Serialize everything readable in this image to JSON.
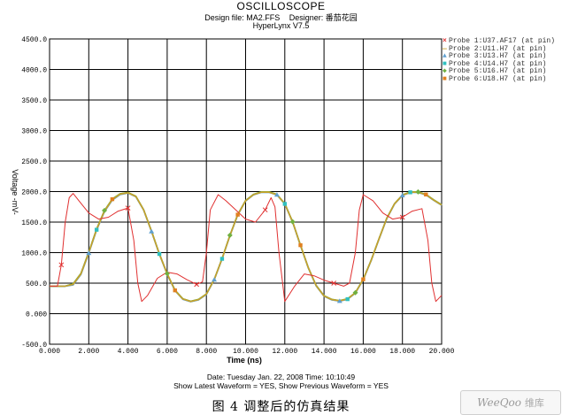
{
  "header": {
    "title": "OSCILLOSCOPE",
    "design_file": "Design file: MA2.FFS",
    "designer": "Designer: 番茄花园",
    "tool": "HyperLynx V7.5"
  },
  "footer": {
    "date_line": "Date: Tuesday Jan. 22, 2008   Time: 10:10:49",
    "show_line": "Show Latest Waveform = YES,   Show Previous Waveform = YES"
  },
  "caption": "图 4   调整后的仿真结果",
  "watermark": {
    "latin": "WeeQoo",
    "cjk": "维库"
  },
  "chart_data": {
    "type": "line",
    "xlabel": "Time (ns)",
    "ylabel": "Voltage -mV-",
    "xlim": [
      0,
      20
    ],
    "ylim": [
      -500,
      4500
    ],
    "x_ticks": [
      "0.000",
      "2.000",
      "4.000",
      "6.000",
      "8.000",
      "10.000",
      "12.000",
      "14.000",
      "16.000",
      "18.000",
      "20.000"
    ],
    "y_ticks": [
      "-500.0",
      "0.000",
      "500.0",
      "1000.0",
      "1500.0",
      "2000.0",
      "2500.0",
      "3000.0",
      "3500.0",
      "4000.0",
      "4500.0"
    ],
    "grid": true,
    "legend_position": "right",
    "series": [
      {
        "name": "Probe 1:U37.AF17 (at pin)",
        "color": "#e03030",
        "marker": "x",
        "x": [
          0,
          0.4,
          0.6,
          0.8,
          1.0,
          1.2,
          1.5,
          2.0,
          2.5,
          3.0,
          3.5,
          4.0,
          4.3,
          4.5,
          4.7,
          5.0,
          5.5,
          6.0,
          6.5,
          7.0,
          7.5,
          7.8,
          8.0,
          8.2,
          8.6,
          9.0,
          9.5,
          10.0,
          10.5,
          11.0,
          11.3,
          11.5,
          11.7,
          12.0,
          12.5,
          13.0,
          13.5,
          14.0,
          14.5,
          15.0,
          15.3,
          15.6,
          15.8,
          16.0,
          16.5,
          17.0,
          17.5,
          18.0,
          18.5,
          19.0,
          19.3,
          19.5,
          19.7,
          20.0
        ],
        "y": [
          450,
          450,
          800,
          1500,
          1900,
          1970,
          1850,
          1650,
          1550,
          1580,
          1680,
          1730,
          1200,
          500,
          200,
          300,
          580,
          680,
          650,
          560,
          480,
          520,
          1000,
          1700,
          1950,
          1850,
          1700,
          1550,
          1500,
          1700,
          1900,
          1750,
          1000,
          200,
          450,
          650,
          620,
          550,
          500,
          450,
          500,
          1000,
          1700,
          1950,
          1850,
          1650,
          1550,
          1580,
          1680,
          1720,
          1200,
          500,
          200,
          300
        ]
      },
      {
        "name": "Probe 2:U11.H7 (at pin)",
        "color": "#c8a028",
        "marker": "",
        "x": [
          0,
          0.8,
          1.2,
          1.6,
          2.0,
          2.4,
          2.8,
          3.2,
          3.6,
          4.0,
          4.4,
          4.8,
          5.2,
          5.6,
          6.0,
          6.4,
          6.8,
          7.2,
          7.6,
          8.0,
          8.4,
          8.8,
          9.2,
          9.6,
          10.0,
          10.4,
          10.8,
          11.2,
          11.6,
          12.0,
          12.4,
          12.8,
          13.2,
          13.6,
          14.0,
          14.4,
          14.8,
          15.2,
          15.6,
          16.0,
          16.4,
          16.8,
          17.2,
          17.6,
          18.0,
          18.4,
          18.8,
          19.2,
          19.6,
          20.0
        ],
        "y": [
          450,
          450,
          480,
          650,
          1000,
          1380,
          1680,
          1870,
          1960,
          1980,
          1920,
          1700,
          1350,
          980,
          650,
          380,
          240,
          200,
          230,
          320,
          560,
          900,
          1280,
          1620,
          1850,
          1950,
          1990,
          1990,
          1950,
          1800,
          1500,
          1120,
          750,
          460,
          290,
          230,
          210,
          240,
          340,
          560,
          870,
          1220,
          1560,
          1800,
          1940,
          1990,
          1990,
          1950,
          1860,
          1780
        ]
      },
      {
        "name": "Probe 3:U13.H7 (at pin)",
        "color": "#60a0d0",
        "marker": "triangle",
        "x": [
          0,
          0.8,
          1.2,
          1.6,
          2.0,
          2.4,
          2.8,
          3.2,
          3.6,
          4.0,
          4.4,
          4.8,
          5.2,
          5.6,
          6.0,
          6.4,
          6.8,
          7.2,
          7.6,
          8.0,
          8.4,
          8.8,
          9.2,
          9.6,
          10.0,
          10.4,
          10.8,
          11.2,
          11.6,
          12.0,
          12.4,
          12.8,
          13.2,
          13.6,
          14.0,
          14.4,
          14.8,
          15.2,
          15.6,
          16.0,
          16.4,
          16.8,
          17.2,
          17.6,
          18.0,
          18.4,
          18.8,
          19.2,
          19.6,
          20.0
        ],
        "y": [
          450,
          450,
          470,
          640,
          990,
          1370,
          1670,
          1860,
          1950,
          1975,
          1915,
          1695,
          1345,
          975,
          645,
          375,
          235,
          195,
          225,
          315,
          555,
          895,
          1275,
          1615,
          1845,
          1945,
          1985,
          1985,
          1945,
          1795,
          1495,
          1115,
          745,
          455,
          285,
          225,
          205,
          235,
          335,
          555,
          865,
          1215,
          1555,
          1795,
          1935,
          1985,
          1985,
          1945,
          1855,
          1775
        ]
      },
      {
        "name": "Probe 4:U14.H7 (at pin)",
        "color": "#30c0c0",
        "marker": "square",
        "x": [
          0,
          0.8,
          1.2,
          1.6,
          2.0,
          2.4,
          2.8,
          3.2,
          3.6,
          4.0,
          4.4,
          4.8,
          5.2,
          5.6,
          6.0,
          6.4,
          6.8,
          7.2,
          7.6,
          8.0,
          8.4,
          8.8,
          9.2,
          9.6,
          10.0,
          10.4,
          10.8,
          11.2,
          11.6,
          12.0,
          12.4,
          12.8,
          13.2,
          13.6,
          14.0,
          14.4,
          14.8,
          15.2,
          15.6,
          16.0,
          16.4,
          16.8,
          17.2,
          17.6,
          18.0,
          18.4,
          18.8,
          19.2,
          19.6,
          20.0
        ],
        "y": [
          450,
          450,
          475,
          645,
          995,
          1375,
          1675,
          1865,
          1955,
          1978,
          1918,
          1698,
          1348,
          978,
          648,
          378,
          238,
          198,
          228,
          318,
          558,
          898,
          1278,
          1618,
          1848,
          1948,
          1988,
          1988,
          1948,
          1798,
          1498,
          1118,
          748,
          458,
          288,
          228,
          208,
          238,
          338,
          558,
          868,
          1218,
          1558,
          1798,
          1938,
          1988,
          1988,
          1948,
          1858,
          1778
        ]
      },
      {
        "name": "Probe 5:U16.H7 (at pin)",
        "color": "#70b040",
        "marker": "diamond",
        "x": [
          0,
          0.8,
          1.2,
          1.6,
          2.0,
          2.4,
          2.8,
          3.2,
          3.6,
          4.0,
          4.4,
          4.8,
          5.2,
          5.6,
          6.0,
          6.4,
          6.8,
          7.2,
          7.6,
          8.0,
          8.4,
          8.8,
          9.2,
          9.6,
          10.0,
          10.4,
          10.8,
          11.2,
          11.6,
          12.0,
          12.4,
          12.8,
          13.2,
          13.6,
          14.0,
          14.4,
          14.8,
          15.2,
          15.6,
          16.0,
          16.4,
          16.8,
          17.2,
          17.6,
          18.0,
          18.4,
          18.8,
          19.2,
          19.6,
          20.0
        ],
        "y": [
          450,
          450,
          490,
          660,
          1010,
          1390,
          1690,
          1880,
          1965,
          1985,
          1925,
          1705,
          1355,
          985,
          655,
          385,
          245,
          205,
          235,
          325,
          565,
          905,
          1285,
          1625,
          1855,
          1955,
          1995,
          1995,
          1955,
          1805,
          1505,
          1125,
          755,
          465,
          295,
          235,
          215,
          245,
          345,
          565,
          875,
          1225,
          1565,
          1805,
          1945,
          1995,
          1995,
          1955,
          1865,
          1785
        ]
      },
      {
        "name": "Probe 6:U18.H7 (at pin)",
        "color": "#e08020",
        "marker": "square",
        "x": [
          0,
          0.8,
          1.2,
          1.6,
          2.0,
          2.4,
          2.8,
          3.2,
          3.6,
          4.0,
          4.4,
          4.8,
          5.2,
          5.6,
          6.0,
          6.4,
          6.8,
          7.2,
          7.6,
          8.0,
          8.4,
          8.8,
          9.2,
          9.6,
          10.0,
          10.4,
          10.8,
          11.2,
          11.6,
          12.0,
          12.4,
          12.8,
          13.2,
          13.6,
          14.0,
          14.4,
          14.8,
          15.2,
          15.6,
          16.0,
          16.4,
          16.8,
          17.2,
          17.6,
          18.0,
          18.4,
          18.8,
          19.2,
          19.6,
          20.0
        ],
        "y": [
          450,
          450,
          485,
          655,
          1005,
          1385,
          1685,
          1875,
          1962,
          1982,
          1922,
          1702,
          1352,
          982,
          652,
          382,
          242,
          202,
          232,
          322,
          562,
          902,
          1282,
          1622,
          1852,
          1952,
          1992,
          1992,
          1952,
          1802,
          1502,
          1122,
          752,
          462,
          292,
          232,
          212,
          242,
          342,
          562,
          872,
          1222,
          1562,
          1802,
          1942,
          1992,
          1992,
          1952,
          1862,
          1782
        ]
      }
    ]
  }
}
